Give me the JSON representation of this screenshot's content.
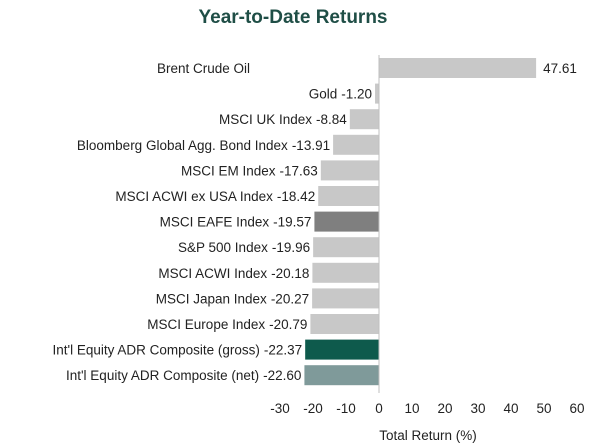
{
  "chart_data": {
    "type": "bar",
    "orientation": "horizontal",
    "title": "Year-to-Date Returns",
    "xlabel": "Total Return (%)",
    "ylabel": "",
    "xlim": [
      -30,
      60
    ],
    "xticks": [
      -30,
      -20,
      -10,
      0,
      10,
      20,
      30,
      40,
      50,
      60
    ],
    "grid": false,
    "categories": [
      "Brent Crude Oil",
      "Gold",
      "MSCI UK Index",
      "Bloomberg Global Agg. Bond Index",
      "MSCI EM Index",
      "MSCI ACWI ex USA Index",
      "MSCI EAFE Index",
      "S&P 500 Index",
      "MSCI ACWI Index",
      "MSCI Japan Index",
      "MSCI Europe Index",
      "Int'l Equity ADR Composite (gross)",
      "Int'l Equity ADR Composite (net)"
    ],
    "values": [
      47.61,
      -1.2,
      -8.84,
      -13.91,
      -17.63,
      -18.42,
      -19.57,
      -19.96,
      -20.18,
      -20.27,
      -20.79,
      -22.37,
      -22.6
    ],
    "value_labels": [
      "47.61",
      "-1.20",
      "-8.84",
      "-13.91",
      "-17.63",
      "-18.42",
      "-19.57",
      "-19.96",
      "-20.18",
      "-20.27",
      "-20.79",
      "-22.37",
      "-22.60"
    ],
    "colors": [
      "#c8c8c8",
      "#c8c8c8",
      "#c8c8c8",
      "#c8c8c8",
      "#c8c8c8",
      "#c8c8c8",
      "#7f7f7f",
      "#c8c8c8",
      "#c8c8c8",
      "#c8c8c8",
      "#c8c8c8",
      "#0e5a4c",
      "#7f9a9a"
    ],
    "axis_color": "#bfbfbf"
  }
}
